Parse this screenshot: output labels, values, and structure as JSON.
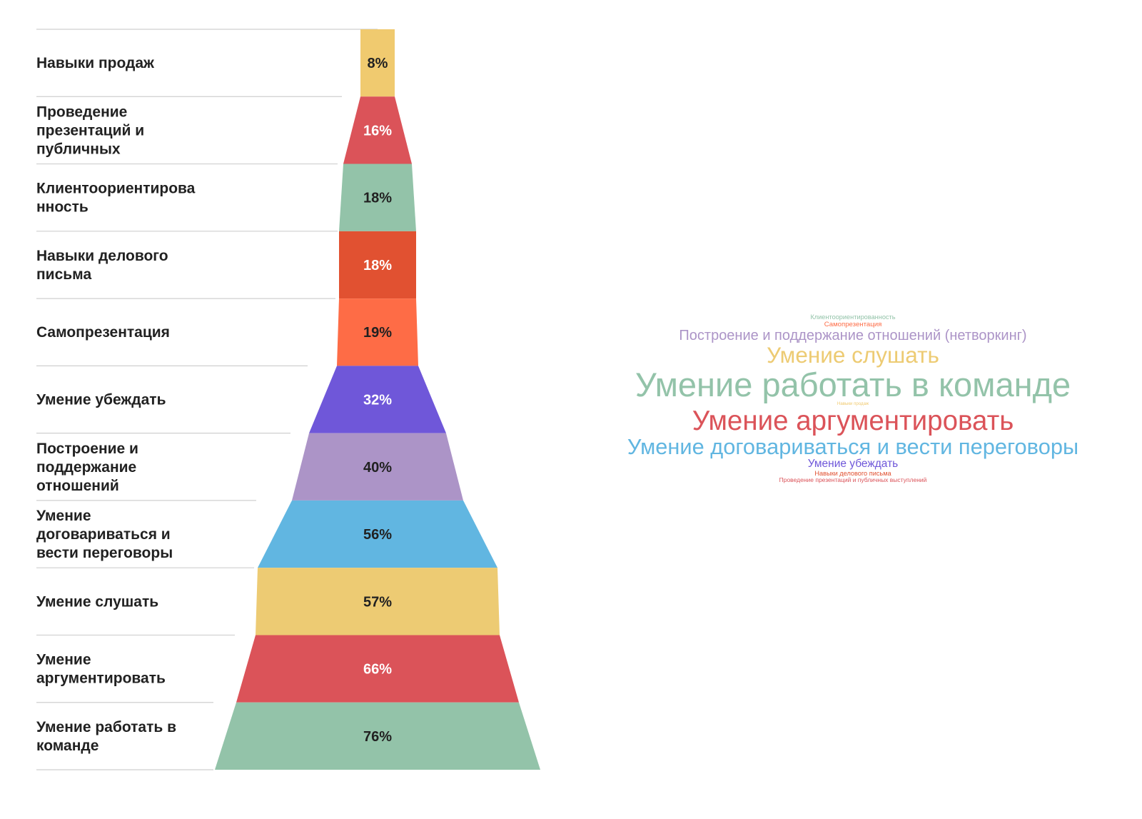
{
  "chart_data": {
    "type": "funnel",
    "title": "",
    "unit": "%",
    "series": [
      {
        "label": "Навыки продаж",
        "value": 8,
        "value_label": "8%",
        "color": "#f0ca6f",
        "text_color": "#212121"
      },
      {
        "label": "Проведение презентаций и публичных",
        "value": 16,
        "value_label": "16%",
        "color": "#db5359",
        "text_color": "#ffffff"
      },
      {
        "label": "Клиентоориентированность",
        "value": 18,
        "value_label": "18%",
        "color": "#93c3a9",
        "text_color": "#212121"
      },
      {
        "label": "Навыки делового письма",
        "value": 18,
        "value_label": "18%",
        "color": "#e15131",
        "text_color": "#ffffff"
      },
      {
        "label": "Самопрезентация",
        "value": 19,
        "value_label": "19%",
        "color": "#fe6c46",
        "text_color": "#212121"
      },
      {
        "label": "Умение убеждать",
        "value": 32,
        "value_label": "32%",
        "color": "#6f57d9",
        "text_color": "#ffffff"
      },
      {
        "label": "Построение и поддержание отношений",
        "value": 40,
        "value_label": "40%",
        "color": "#ac94c7",
        "text_color": "#212121"
      },
      {
        "label": "Умение договариваться и вести переговоры",
        "value": 56,
        "value_label": "56%",
        "color": "#61b6e1",
        "text_color": "#212121"
      },
      {
        "label": "Умение слушать",
        "value": 57,
        "value_label": "57%",
        "color": "#edcb73",
        "text_color": "#212121"
      },
      {
        "label": "Умение аргументировать",
        "value": 66,
        "value_label": "66%",
        "color": "#db5359",
        "text_color": "#ffffff"
      },
      {
        "label": "Умение работать в команде",
        "value": 76,
        "value_label": "76%",
        "color": "#93c3a9",
        "text_color": "#212121"
      }
    ]
  },
  "label_lines": [
    [
      "Навыки продаж"
    ],
    [
      "Проведение",
      "презентаций и",
      "публичных"
    ],
    [
      "Клиентоориентирова",
      "нность"
    ],
    [
      "Навыки делового",
      "письма"
    ],
    [
      "Самопрезентация"
    ],
    [
      "Умение убеждать"
    ],
    [
      "Построение и",
      "поддержание",
      "отношений"
    ],
    [
      "Умение",
      "договариваться и",
      "вести переговоры"
    ],
    [
      "Умение слушать"
    ],
    [
      "Умение",
      "аргументировать"
    ],
    [
      "Умение работать в",
      "команде"
    ]
  ],
  "word_cloud": [
    {
      "text": "Клиентоориентированность",
      "weight": 18,
      "color": "#93c3a9"
    },
    {
      "text": "Самопрезентация",
      "weight": 19,
      "color": "#fe6c46"
    },
    {
      "text": "Построение и поддержание отношений (нетворкинг)",
      "weight": 40,
      "color": "#ac94c7"
    },
    {
      "text": "Умение слушать",
      "weight": 57,
      "color": "#edcb73"
    },
    {
      "text": "Умение работать в команде",
      "weight": 76,
      "color": "#93c3a9"
    },
    {
      "text": "Навыки продаж",
      "weight": 8,
      "color": "#f0ca6f"
    },
    {
      "text": "Умение аргументировать",
      "weight": 66,
      "color": "#db5359"
    },
    {
      "text": "Умение договариваться и вести переговоры",
      "weight": 56,
      "color": "#61b6e1"
    },
    {
      "text": "Умение убеждать",
      "weight": 32,
      "color": "#6f57d9"
    },
    {
      "text": "Навыки делового письма",
      "weight": 18,
      "color": "#e15131"
    },
    {
      "text": "Проведение презентаций и публичных выступлений",
      "weight": 16,
      "color": "#db5359"
    }
  ]
}
